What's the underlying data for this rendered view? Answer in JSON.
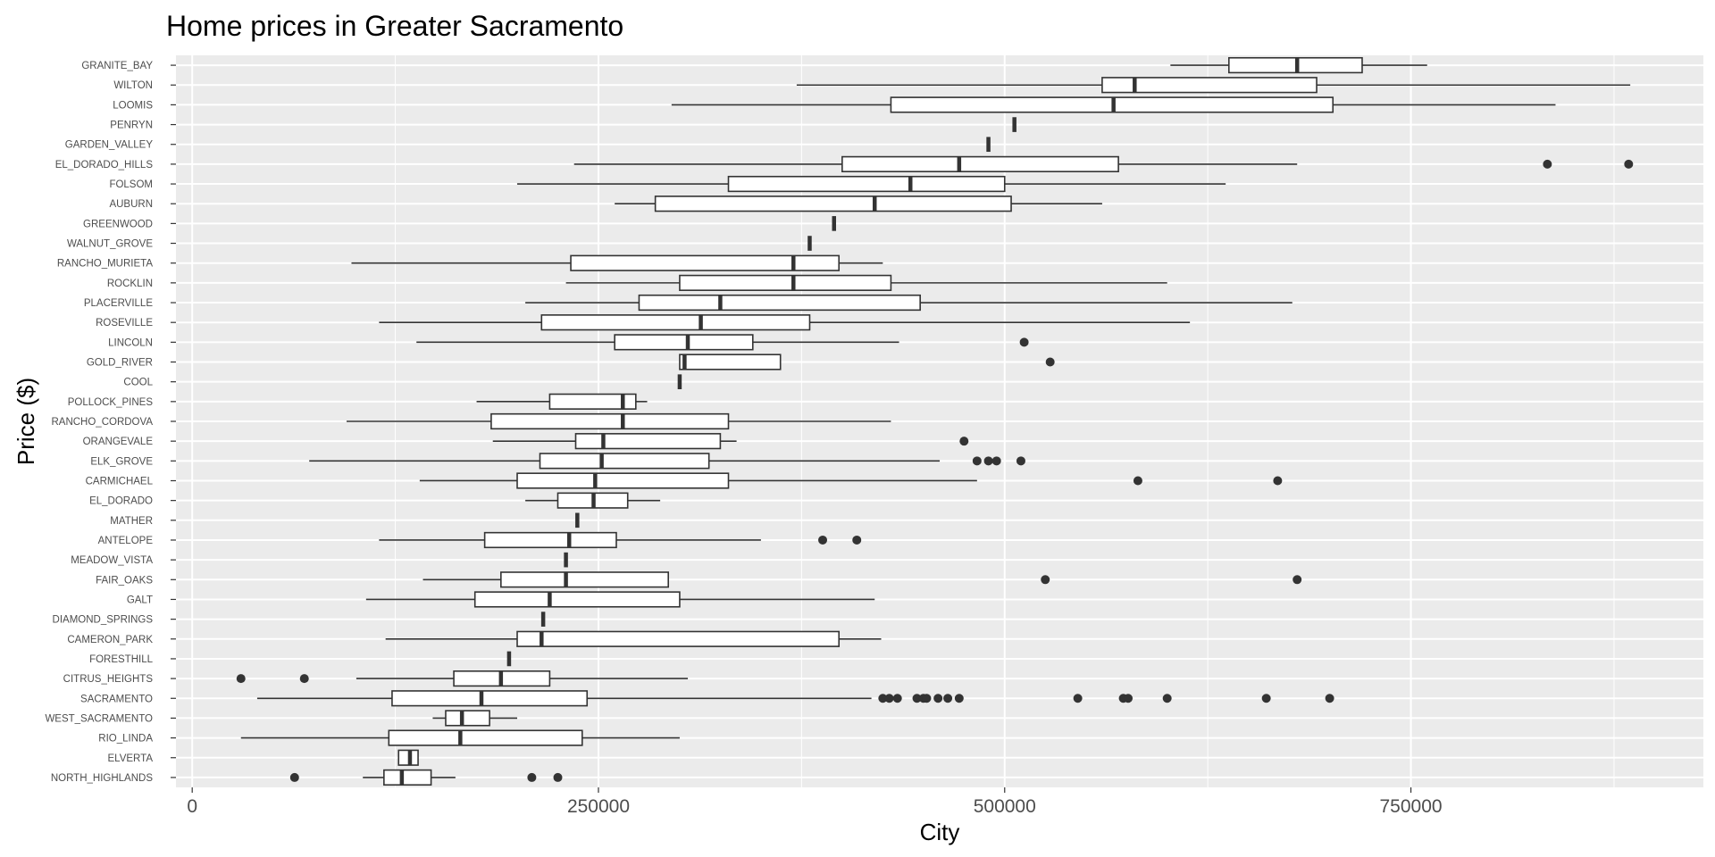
{
  "chart_data": {
    "type": "boxplot",
    "orientation": "horizontal",
    "title": "Home prices in Greater Sacramento",
    "xlabel": "City",
    "ylabel": "Price ($)",
    "xlim": [
      -10000,
      930000
    ],
    "x_ticks": [
      0,
      250000,
      500000,
      750000
    ],
    "x_tick_labels": [
      "0",
      "250000",
      "500000",
      "750000"
    ],
    "grid": true,
    "panel_background": "#ebebeb",
    "grid_color": "#ffffff",
    "categories": [
      {
        "name": "GRANITE_BAY",
        "whisker_low": 602000,
        "q1": 638000,
        "median": 680000,
        "q3": 720000,
        "whisker_high": 760000,
        "outliers": []
      },
      {
        "name": "WILTON",
        "whisker_low": 372000,
        "q1": 560000,
        "median": 580000,
        "q3": 692000,
        "whisker_high": 885000,
        "outliers": []
      },
      {
        "name": "LOOMIS",
        "whisker_low": 295000,
        "q1": 430000,
        "median": 567000,
        "q3": 702000,
        "whisker_high": 839000,
        "outliers": []
      },
      {
        "name": "PENRYN",
        "whisker_low": 506000,
        "q1": 506000,
        "median": 506000,
        "q3": 506000,
        "whisker_high": 506000,
        "outliers": []
      },
      {
        "name": "GARDEN_VALLEY",
        "whisker_low": 490000,
        "q1": 490000,
        "median": 490000,
        "q3": 490000,
        "whisker_high": 490000,
        "outliers": []
      },
      {
        "name": "EL_DORADO_HILLS",
        "whisker_low": 235000,
        "q1": 400000,
        "median": 472000,
        "q3": 570000,
        "whisker_high": 680000,
        "outliers": [
          834000,
          884000
        ]
      },
      {
        "name": "FOLSOM",
        "whisker_low": 200000,
        "q1": 330000,
        "median": 442000,
        "q3": 500000,
        "whisker_high": 636000,
        "outliers": []
      },
      {
        "name": "AUBURN",
        "whisker_low": 260000,
        "q1": 285000,
        "median": 420000,
        "q3": 504000,
        "whisker_high": 560000,
        "outliers": []
      },
      {
        "name": "GREENWOOD",
        "whisker_low": 395000,
        "q1": 395000,
        "median": 395000,
        "q3": 395000,
        "whisker_high": 395000,
        "outliers": []
      },
      {
        "name": "WALNUT_GROVE",
        "whisker_low": 380000,
        "q1": 380000,
        "median": 380000,
        "q3": 380000,
        "whisker_high": 380000,
        "outliers": []
      },
      {
        "name": "RANCHO_MURIETA",
        "whisker_low": 98000,
        "q1": 233000,
        "median": 370000,
        "q3": 398000,
        "whisker_high": 425000,
        "outliers": []
      },
      {
        "name": "ROCKLIN",
        "whisker_low": 230000,
        "q1": 300000,
        "median": 370000,
        "q3": 430000,
        "whisker_high": 600000,
        "outliers": []
      },
      {
        "name": "PLACERVILLE",
        "whisker_low": 205000,
        "q1": 275000,
        "median": 325000,
        "q3": 448000,
        "whisker_high": 677000,
        "outliers": []
      },
      {
        "name": "ROSEVILLE",
        "whisker_low": 115000,
        "q1": 215000,
        "median": 313000,
        "q3": 380000,
        "whisker_high": 614000,
        "outliers": []
      },
      {
        "name": "LINCOLN",
        "whisker_low": 138000,
        "q1": 260000,
        "median": 305000,
        "q3": 345000,
        "whisker_high": 435000,
        "outliers": [
          512000
        ]
      },
      {
        "name": "GOLD_RIVER",
        "whisker_low": 300000,
        "q1": 300000,
        "median": 303000,
        "q3": 362000,
        "whisker_high": 362000,
        "outliers": [
          528000
        ]
      },
      {
        "name": "COOL",
        "whisker_low": 300000,
        "q1": 300000,
        "median": 300000,
        "q3": 300000,
        "whisker_high": 300000,
        "outliers": []
      },
      {
        "name": "POLLOCK_PINES",
        "whisker_low": 175000,
        "q1": 220000,
        "median": 265000,
        "q3": 273000,
        "whisker_high": 280000,
        "outliers": []
      },
      {
        "name": "RANCHO_CORDOVA",
        "whisker_low": 95000,
        "q1": 184000,
        "median": 265000,
        "q3": 330000,
        "whisker_high": 430000,
        "outliers": []
      },
      {
        "name": "ORANGEVALE",
        "whisker_low": 185000,
        "q1": 236000,
        "median": 253000,
        "q3": 325000,
        "whisker_high": 335000,
        "outliers": [
          475000
        ]
      },
      {
        "name": "ELK_GROVE",
        "whisker_low": 72000,
        "q1": 214000,
        "median": 252000,
        "q3": 318000,
        "whisker_high": 460000,
        "outliers": [
          483000,
          490000,
          495000,
          510000
        ]
      },
      {
        "name": "CARMICHAEL",
        "whisker_low": 140000,
        "q1": 200000,
        "median": 248000,
        "q3": 330000,
        "whisker_high": 483000,
        "outliers": [
          582000,
          668000
        ]
      },
      {
        "name": "EL_DORADO",
        "whisker_low": 205000,
        "q1": 225000,
        "median": 247000,
        "q3": 268000,
        "whisker_high": 288000,
        "outliers": []
      },
      {
        "name": "MATHER",
        "whisker_low": 237000,
        "q1": 237000,
        "median": 237000,
        "q3": 237000,
        "whisker_high": 237000,
        "outliers": []
      },
      {
        "name": "ANTELOPE",
        "whisker_low": 115000,
        "q1": 180000,
        "median": 232000,
        "q3": 261000,
        "whisker_high": 350000,
        "outliers": [
          388000,
          409000
        ]
      },
      {
        "name": "MEADOW_VISTA",
        "whisker_low": 230000,
        "q1": 230000,
        "median": 230000,
        "q3": 230000,
        "whisker_high": 230000,
        "outliers": []
      },
      {
        "name": "FAIR_OAKS",
        "whisker_low": 142000,
        "q1": 190000,
        "median": 230000,
        "q3": 293000,
        "whisker_high": 293000,
        "outliers": [
          525000,
          680000
        ]
      },
      {
        "name": "GALT",
        "whisker_low": 107000,
        "q1": 174000,
        "median": 220000,
        "q3": 300000,
        "whisker_high": 420000,
        "outliers": []
      },
      {
        "name": "DIAMOND_SPRINGS",
        "whisker_low": 216000,
        "q1": 216000,
        "median": 216000,
        "q3": 216000,
        "whisker_high": 216000,
        "outliers": []
      },
      {
        "name": "CAMERON_PARK",
        "whisker_low": 119000,
        "q1": 200000,
        "median": 215000,
        "q3": 398000,
        "whisker_high": 424000,
        "outliers": []
      },
      {
        "name": "FORESTHILL",
        "whisker_low": 195000,
        "q1": 195000,
        "median": 195000,
        "q3": 195000,
        "whisker_high": 195000,
        "outliers": []
      },
      {
        "name": "CITRUS_HEIGHTS",
        "whisker_low": 101000,
        "q1": 161000,
        "median": 190000,
        "q3": 220000,
        "whisker_high": 305000,
        "outliers": [
          30000,
          69000
        ]
      },
      {
        "name": "SACRAMENTO",
        "whisker_low": 40000,
        "q1": 123000,
        "median": 178000,
        "q3": 243000,
        "whisker_high": 418000,
        "outliers": [
          425000,
          429000,
          434000,
          446000,
          450000,
          452000,
          459000,
          465000,
          472000,
          545000,
          573000,
          576000,
          600000,
          661000,
          700000
        ]
      },
      {
        "name": "WEST_SACRAMENTO",
        "whisker_low": 148000,
        "q1": 156000,
        "median": 166000,
        "q3": 183000,
        "whisker_high": 200000,
        "outliers": []
      },
      {
        "name": "RIO_LINDA",
        "whisker_low": 30000,
        "q1": 121000,
        "median": 165000,
        "q3": 240000,
        "whisker_high": 300000,
        "outliers": []
      },
      {
        "name": "ELVERTA",
        "whisker_low": 127000,
        "q1": 127000,
        "median": 134000,
        "q3": 139000,
        "whisker_high": 139000,
        "outliers": []
      },
      {
        "name": "NORTH_HIGHLANDS",
        "whisker_low": 105000,
        "q1": 118000,
        "median": 129000,
        "q3": 147000,
        "whisker_high": 162000,
        "outliers": [
          63000,
          209000,
          225000
        ]
      }
    ]
  }
}
